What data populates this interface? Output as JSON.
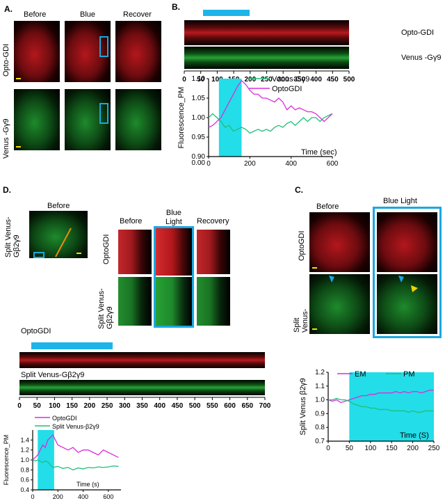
{
  "panelA": {
    "letter": "A.",
    "columns": [
      "Before",
      "Blue",
      "Recover"
    ],
    "rows": [
      "Opto-GDI",
      "Venus -Gγ9"
    ]
  },
  "panelB": {
    "letter": "B.",
    "kymo_labels": [
      "Opto-GDI",
      "Venus -Gγ9"
    ],
    "kymo_axis_ticks": [
      "0",
      "50",
      "100",
      "150",
      "200",
      "250",
      "300",
      "350",
      "400",
      "450",
      "500"
    ]
  },
  "panelD": {
    "letter": "D.",
    "before_title": "Before",
    "cell_label": [
      "Split Venus-",
      "Gβ2γ9"
    ],
    "zoom_titles": [
      "Before",
      "Blue\nLight",
      "Recovery"
    ],
    "zoom_rows": [
      "OptoGDI",
      "Split Venus-\nGβ2γ9"
    ],
    "kymo_labels": [
      "OptoGDI",
      "Split Venus-Gβ2γ9"
    ],
    "kymo_axis_ticks": [
      "0",
      "50",
      "100",
      "150",
      "200",
      "250",
      "300",
      "350",
      "400",
      "450",
      "500",
      "550",
      "600",
      "650",
      "700"
    ]
  },
  "panelC": {
    "letter": "C.",
    "columns": [
      "Before",
      "Blue Light"
    ],
    "rows": [
      "OptoGDI",
      "Split\nVenus-"
    ]
  },
  "chart_data": [
    {
      "id": "B",
      "type": "line",
      "ylabel": "Fluorescence_PM",
      "xlabel": "Time (sec)",
      "xlim": [
        0,
        600
      ],
      "ylim": [
        0.9,
        1.1
      ],
      "xticks": [
        0,
        200,
        400,
        600
      ],
      "yticks": [
        0.9,
        0.95,
        1.0,
        1.05,
        1.1
      ],
      "extra_y_tick": "0.00",
      "highlight": [
        50,
        160
      ],
      "legend": "top-right",
      "series": [
        {
          "name": "Venus-Gγ9",
          "color": "#1fbf7a",
          "x": [
            0,
            20,
            40,
            60,
            80,
            100,
            120,
            140,
            160,
            180,
            200,
            220,
            240,
            260,
            280,
            300,
            320,
            340,
            360,
            380,
            400,
            420,
            440,
            460,
            480,
            500,
            520,
            540,
            560,
            580,
            600
          ],
          "y": [
            1.0,
            1.01,
            1.0,
            0.99,
            0.975,
            0.98,
            0.965,
            0.97,
            0.975,
            0.97,
            0.96,
            0.965,
            0.97,
            0.965,
            0.97,
            0.965,
            0.975,
            0.98,
            0.975,
            0.985,
            0.99,
            0.98,
            0.99,
            1.0,
            0.99,
            1.0,
            1.0,
            0.99,
            1.0,
            1.005,
            1.01
          ]
        },
        {
          "name": "OptoGDI",
          "color": "#d92ed9",
          "x": [
            0,
            20,
            40,
            60,
            80,
            100,
            120,
            140,
            160,
            180,
            200,
            220,
            240,
            260,
            280,
            300,
            320,
            340,
            360,
            380,
            400,
            420,
            440,
            460,
            480,
            500,
            520,
            540,
            560,
            580,
            600
          ],
          "y": [
            0.975,
            0.98,
            0.99,
            1.0,
            1.02,
            1.04,
            1.06,
            1.08,
            1.095,
            1.085,
            1.07,
            1.06,
            1.06,
            1.05,
            1.05,
            1.045,
            1.04,
            1.05,
            1.04,
            1.02,
            1.03,
            1.02,
            1.025,
            1.02,
            1.015,
            1.015,
            1.01,
            1.0,
            0.99,
            1.0,
            1.01
          ]
        }
      ]
    },
    {
      "id": "D",
      "type": "line",
      "ylabel": "Fluorescence_PM",
      "xlabel": "Time (s)",
      "xlim": [
        0,
        700
      ],
      "ylim": [
        0.4,
        1.6
      ],
      "xticks": [
        0,
        200,
        400,
        600
      ],
      "yticks": [
        0.4,
        0.6,
        0.8,
        1.0,
        1.2,
        1.4
      ],
      "highlight": [
        40,
        170
      ],
      "legend": "top",
      "series": [
        {
          "name": "OptoGDI",
          "color": "#d92ed9",
          "x": [
            0,
            20,
            40,
            60,
            80,
            100,
            120,
            140,
            160,
            180,
            200,
            240,
            280,
            320,
            360,
            400,
            440,
            480,
            520,
            560,
            600,
            640,
            680
          ],
          "y": [
            1.0,
            1.05,
            1.1,
            1.2,
            1.3,
            1.25,
            1.4,
            1.45,
            1.5,
            1.4,
            1.3,
            1.25,
            1.2,
            1.25,
            1.15,
            1.2,
            1.2,
            1.15,
            1.1,
            1.2,
            1.15,
            1.1,
            1.05
          ]
        },
        {
          "name": "Split Venus-β2γ9",
          "color": "#1fbf7a",
          "x": [
            0,
            20,
            40,
            60,
            80,
            100,
            120,
            140,
            160,
            180,
            200,
            240,
            280,
            320,
            360,
            400,
            440,
            480,
            520,
            560,
            600,
            640,
            680
          ],
          "y": [
            1.0,
            0.98,
            1.0,
            0.97,
            0.95,
            0.98,
            0.96,
            0.9,
            0.85,
            0.86,
            0.87,
            0.83,
            0.85,
            0.8,
            0.84,
            0.82,
            0.85,
            0.84,
            0.86,
            0.85,
            0.86,
            0.88,
            0.87
          ]
        }
      ]
    },
    {
      "id": "C",
      "type": "line",
      "ylabel": "Split Venus β2γ9",
      "xlabel": "Time (S)",
      "xlim": [
        0,
        250
      ],
      "ylim": [
        0.7,
        1.2
      ],
      "xticks": [
        0,
        50,
        100,
        150,
        200,
        250
      ],
      "yticks": [
        0.7,
        0.8,
        0.9,
        1.0,
        1.1,
        1.2
      ],
      "highlight": [
        50,
        250
      ],
      "legend": "top",
      "series": [
        {
          "name": "EM",
          "color": "#d92ed9",
          "x": [
            0,
            10,
            20,
            30,
            40,
            50,
            60,
            70,
            80,
            90,
            100,
            110,
            120,
            130,
            140,
            150,
            160,
            170,
            180,
            190,
            200,
            210,
            220,
            230,
            240,
            250
          ],
          "y": [
            1.0,
            0.99,
            1.0,
            0.98,
            0.99,
            1.0,
            1.01,
            1.02,
            1.03,
            1.03,
            1.04,
            1.04,
            1.05,
            1.05,
            1.05,
            1.05,
            1.06,
            1.05,
            1.06,
            1.05,
            1.06,
            1.06,
            1.05,
            1.06,
            1.07,
            1.07
          ]
        },
        {
          "name": "PM",
          "color": "#1fbf7a",
          "x": [
            0,
            10,
            20,
            30,
            40,
            50,
            60,
            70,
            80,
            90,
            100,
            110,
            120,
            130,
            140,
            150,
            160,
            170,
            180,
            190,
            200,
            210,
            220,
            230,
            240,
            250
          ],
          "y": [
            1.0,
            1.0,
            1.01,
            1.0,
            1.0,
            0.99,
            0.97,
            0.96,
            0.95,
            0.95,
            0.94,
            0.94,
            0.93,
            0.93,
            0.93,
            0.92,
            0.92,
            0.92,
            0.92,
            0.91,
            0.92,
            0.91,
            0.91,
            0.92,
            0.92,
            0.92
          ]
        }
      ]
    }
  ]
}
